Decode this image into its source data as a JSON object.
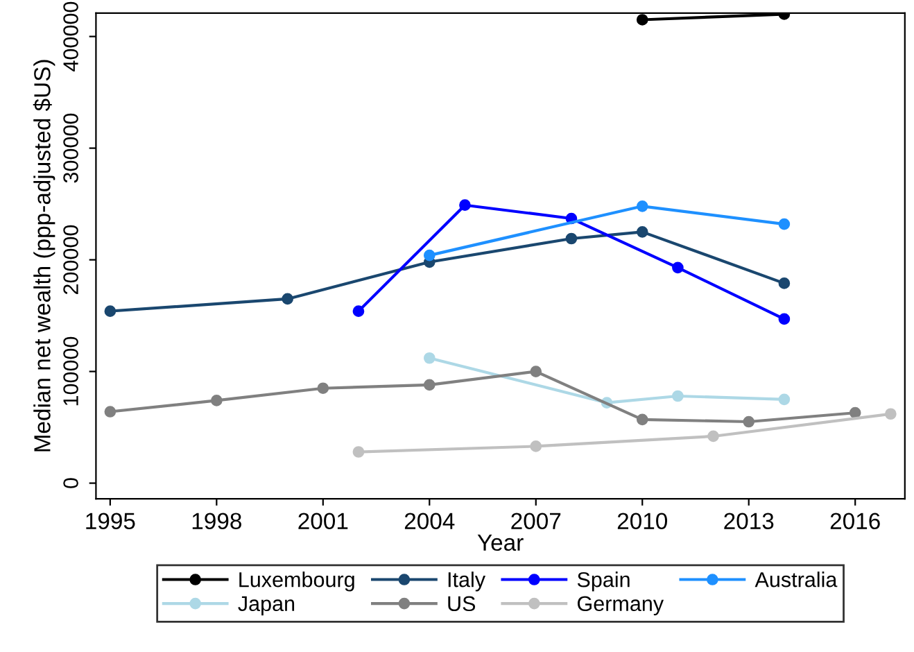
{
  "chart_data": {
    "type": "line",
    "xlabel": "Year",
    "ylabel": "Median net wealth (ppp-adjusted $US)",
    "xlim": [
      1994.6,
      2017.4
    ],
    "xticks": [
      1995,
      1998,
      2001,
      2004,
      2007,
      2010,
      2013,
      2016
    ],
    "ylim": [
      -14000,
      421000
    ],
    "yticks": [
      0,
      100000,
      200000,
      300000,
      400000
    ],
    "grid": false,
    "legend": "bottom",
    "marker": "circle",
    "line_style": "solid",
    "series": [
      {
        "name": "Luxembourg",
        "color": "#000000",
        "x": [
          2010,
          2014
        ],
        "values": [
          415000,
          420000
        ]
      },
      {
        "name": "Italy",
        "color": "#1a476f",
        "x": [
          1995,
          2000,
          2004,
          2008,
          2010,
          2014
        ],
        "values": [
          154000,
          165000,
          198000,
          219000,
          225000,
          179000
        ]
      },
      {
        "name": "Spain",
        "color": "#0000ff",
        "x": [
          2002,
          2005,
          2008,
          2011,
          2014
        ],
        "values": [
          154000,
          249000,
          237000,
          193000,
          147000
        ]
      },
      {
        "name": "Australia",
        "color": "#1e90ff",
        "x": [
          2004,
          2010,
          2014
        ],
        "values": [
          204000,
          248000,
          232000
        ]
      },
      {
        "name": "Japan",
        "color": "#add8e6",
        "x": [
          2004,
          2009,
          2011,
          2014
        ],
        "values": [
          112000,
          72000,
          78000,
          75000
        ]
      },
      {
        "name": "US",
        "color": "#808080",
        "x": [
          1995,
          1998,
          2001,
          2004,
          2007,
          2010,
          2013,
          2016
        ],
        "values": [
          64000,
          74000,
          85000,
          88000,
          100000,
          57000,
          55000,
          63000
        ]
      },
      {
        "name": "Germany",
        "color": "#c0c0c0",
        "x": [
          2002,
          2007,
          2012,
          2017
        ],
        "values": [
          28000,
          33000,
          42000,
          62000
        ]
      }
    ]
  }
}
